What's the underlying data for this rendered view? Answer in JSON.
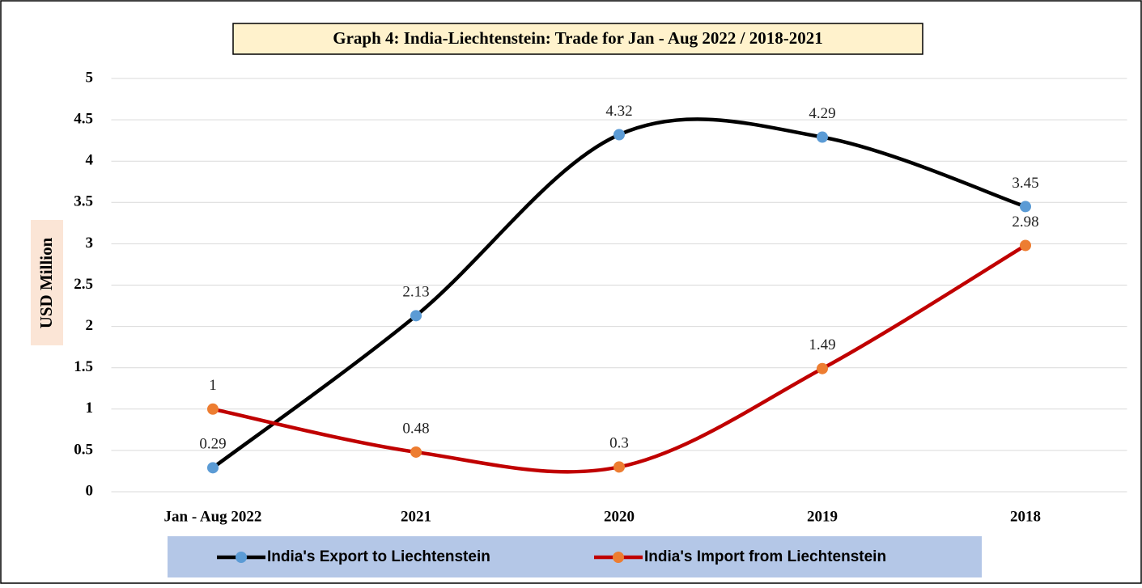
{
  "chart_data": {
    "type": "line",
    "title": "Graph 4: India-Liechtenstein: Trade for Jan - Aug 2022 / 2018-2021",
    "y_label": "USD Million",
    "categories": [
      "Jan - Aug 2022",
      "2021",
      "2020",
      "2019",
      "2018"
    ],
    "series": [
      {
        "name": "India's Export to Liechtenstein",
        "color": "#000000",
        "marker_color": "#5b9bd5",
        "values": [
          0.29,
          2.13,
          4.32,
          4.29,
          3.45
        ]
      },
      {
        "name": "India's Import from Liechtenstein",
        "color": "#c00000",
        "marker_color": "#ed7d31",
        "values": [
          1,
          0.48,
          0.3,
          1.49,
          2.98
        ]
      }
    ],
    "ylim": [
      0,
      5
    ],
    "yticks": [
      0,
      0.5,
      1,
      1.5,
      2,
      2.5,
      3,
      3.5,
      4,
      4.5,
      5
    ],
    "grid": true,
    "smooth": true,
    "legend": "bottom"
  }
}
